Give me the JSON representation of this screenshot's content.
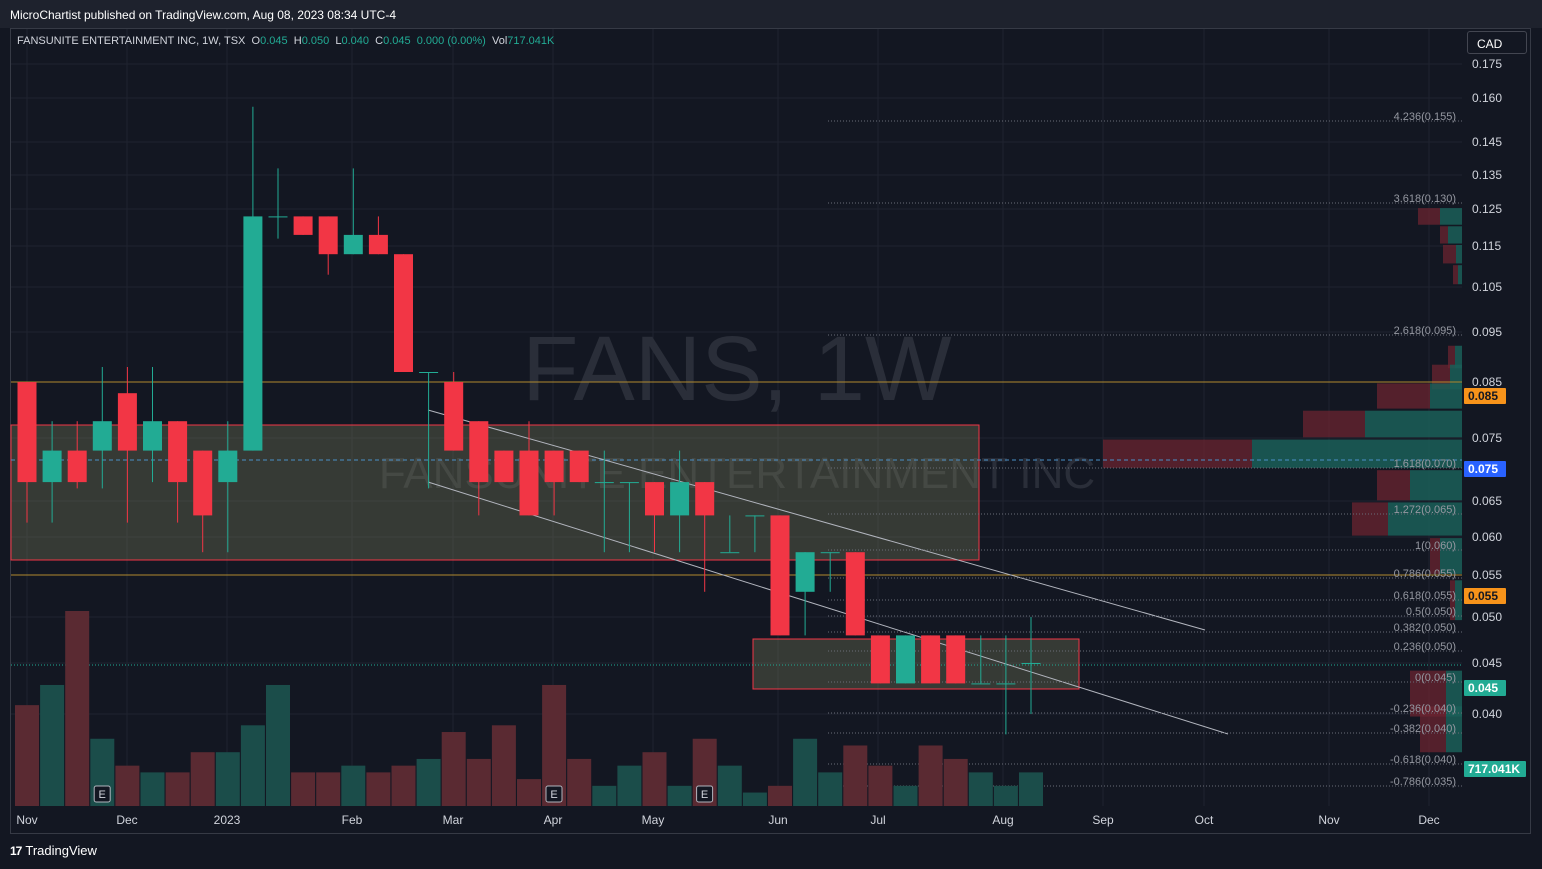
{
  "header": {
    "published_by": "MicroChartist published on TradingView.com, Aug 08, 2023 08:34 UTC-4"
  },
  "legend": {
    "symbol_label": "FANSUNITE ENTERTAINMENT INC, 1W, TSX",
    "open_key": "O",
    "open_value": "0.045",
    "high_key": "H",
    "high_value": "0.050",
    "low_key": "L",
    "low_value": "0.040",
    "close_key": "C",
    "close_value": "0.045",
    "change": "0.000 (0.00%)",
    "volume_key": "Vol",
    "volume_value": "717.041K"
  },
  "currency": "CAD",
  "watermark": {
    "ticker": "FANS, 1W",
    "name": "FANSUNITE ENTERTAINMENT INC"
  },
  "footer": {
    "brand": "TradingView",
    "logo_text": "17"
  },
  "colors": {
    "bull": "#22ab94",
    "bear": "#f23645",
    "bg": "#131722",
    "level_line": "#b08a2e",
    "grid": "#1f2330"
  },
  "chart_data": {
    "type": "candlestick",
    "interval": "1W",
    "y_axis": {
      "ticks": [
        "0.175",
        "0.160",
        "0.145",
        "0.135",
        "0.125",
        "0.115",
        "0.105",
        "0.095",
        "0.085",
        "0.075",
        "0.065",
        "0.060",
        "0.055",
        "0.050",
        "0.045",
        "0.040"
      ]
    },
    "x_axis": {
      "labels": [
        "Nov",
        "Dec",
        "2023",
        "Feb",
        "Mar",
        "Apr",
        "May",
        "Jun",
        "Jul",
        "Aug",
        "Sep",
        "Oct",
        "Nov",
        "Dec"
      ]
    },
    "price_labels": [
      {
        "text": "0.085",
        "color": "#f7931a",
        "text_color": "#131722"
      },
      {
        "text": "0.075",
        "color": "#2962ff",
        "text_color": "#ffffff"
      },
      {
        "text": "0.055",
        "color": "#f7931a",
        "text_color": "#131722"
      },
      {
        "text": "0.045",
        "color": "#22ab94",
        "text_color": "#ffffff"
      },
      {
        "text": "717.041K",
        "color": "#22ab94",
        "text_color": "#ffffff"
      }
    ],
    "fib_levels": [
      "4.236(0.155)",
      "3.618(0.130)",
      "2.618(0.095)",
      "1.618(0.070)",
      "1.272(0.065)",
      "1(0.060)",
      "0.786(0.055)",
      "0.618(0.055)",
      "0.5(0.050)",
      "0.382(0.050)",
      "0.236(0.050)",
      "0(0.045)",
      "-0.236(0.040)",
      "-0.382(0.040)",
      "-0.618(0.040)",
      "-0.786(0.035)"
    ],
    "horizontal_levels": [
      0.085,
      0.055
    ],
    "earnings_markers": [
      "E",
      "E",
      "E"
    ],
    "candles": [
      {
        "o": 0.085,
        "h": 0.085,
        "l": 0.062,
        "c": 0.068
      },
      {
        "o": 0.068,
        "h": 0.078,
        "l": 0.062,
        "c": 0.073
      },
      {
        "o": 0.073,
        "h": 0.078,
        "l": 0.067,
        "c": 0.068
      },
      {
        "o": 0.073,
        "h": 0.088,
        "l": 0.067,
        "c": 0.078
      },
      {
        "o": 0.083,
        "h": 0.088,
        "l": 0.062,
        "c": 0.073
      },
      {
        "o": 0.073,
        "h": 0.088,
        "l": 0.068,
        "c": 0.078
      },
      {
        "o": 0.078,
        "h": 0.078,
        "l": 0.062,
        "c": 0.068
      },
      {
        "o": 0.073,
        "h": 0.073,
        "l": 0.058,
        "c": 0.063
      },
      {
        "o": 0.068,
        "h": 0.078,
        "l": 0.058,
        "c": 0.073
      },
      {
        "o": 0.073,
        "h": 0.157,
        "l": 0.073,
        "c": 0.123
      },
      {
        "o": 0.123,
        "h": 0.137,
        "l": 0.117,
        "c": 0.123
      },
      {
        "o": 0.123,
        "h": 0.123,
        "l": 0.118,
        "c": 0.118
      },
      {
        "o": 0.123,
        "h": 0.123,
        "l": 0.108,
        "c": 0.113
      },
      {
        "o": 0.113,
        "h": 0.137,
        "l": 0.113,
        "c": 0.118
      },
      {
        "o": 0.118,
        "h": 0.123,
        "l": 0.113,
        "c": 0.113
      },
      {
        "o": 0.113,
        "h": 0.113,
        "l": 0.087,
        "c": 0.087
      },
      {
        "o": 0.087,
        "h": 0.087,
        "l": 0.067,
        "c": 0.087
      },
      {
        "o": 0.085,
        "h": 0.087,
        "l": 0.073,
        "c": 0.073
      },
      {
        "o": 0.078,
        "h": 0.078,
        "l": 0.063,
        "c": 0.068
      },
      {
        "o": 0.073,
        "h": 0.073,
        "l": 0.068,
        "c": 0.068
      },
      {
        "o": 0.073,
        "h": 0.078,
        "l": 0.063,
        "c": 0.063
      },
      {
        "o": 0.073,
        "h": 0.073,
        "l": 0.063,
        "c": 0.068
      },
      {
        "o": 0.073,
        "h": 0.073,
        "l": 0.068,
        "c": 0.068
      },
      {
        "o": 0.068,
        "h": 0.073,
        "l": 0.058,
        "c": 0.068
      },
      {
        "o": 0.068,
        "h": 0.068,
        "l": 0.058,
        "c": 0.068
      },
      {
        "o": 0.068,
        "h": 0.068,
        "l": 0.058,
        "c": 0.063
      },
      {
        "o": 0.063,
        "h": 0.073,
        "l": 0.058,
        "c": 0.068
      },
      {
        "o": 0.068,
        "h": 0.068,
        "l": 0.053,
        "c": 0.063
      },
      {
        "o": 0.058,
        "h": 0.063,
        "l": 0.058,
        "c": 0.058
      },
      {
        "o": 0.063,
        "h": 0.063,
        "l": 0.058,
        "c": 0.063
      },
      {
        "o": 0.063,
        "h": 0.063,
        "l": 0.048,
        "c": 0.048
      },
      {
        "o": 0.053,
        "h": 0.058,
        "l": 0.048,
        "c": 0.058
      },
      {
        "o": 0.058,
        "h": 0.058,
        "l": 0.053,
        "c": 0.058
      },
      {
        "o": 0.058,
        "h": 0.058,
        "l": 0.048,
        "c": 0.048
      },
      {
        "o": 0.048,
        "h": 0.048,
        "l": 0.043,
        "c": 0.043
      },
      {
        "o": 0.043,
        "h": 0.048,
        "l": 0.043,
        "c": 0.048
      },
      {
        "o": 0.048,
        "h": 0.048,
        "l": 0.043,
        "c": 0.043
      },
      {
        "o": 0.048,
        "h": 0.048,
        "l": 0.043,
        "c": 0.043
      },
      {
        "o": 0.043,
        "h": 0.048,
        "l": 0.043,
        "c": 0.043
      },
      {
        "o": 0.043,
        "h": 0.048,
        "l": 0.038,
        "c": 0.043
      },
      {
        "o": 0.045,
        "h": 0.05,
        "l": 0.04,
        "c": 0.045
      }
    ],
    "volume": [
      1.5,
      1.8,
      2.9,
      1.0,
      0.6,
      0.5,
      0.5,
      0.8,
      0.8,
      1.2,
      1.8,
      0.5,
      0.5,
      0.6,
      0.5,
      0.6,
      0.7,
      1.1,
      0.7,
      1.2,
      0.4,
      1.8,
      0.7,
      0.3,
      0.6,
      0.8,
      0.3,
      1.0,
      0.6,
      0.2,
      0.3,
      1.0,
      0.5,
      0.9,
      0.6,
      0.3,
      0.9,
      0.7,
      0.5,
      0.3,
      0.5
    ]
  }
}
